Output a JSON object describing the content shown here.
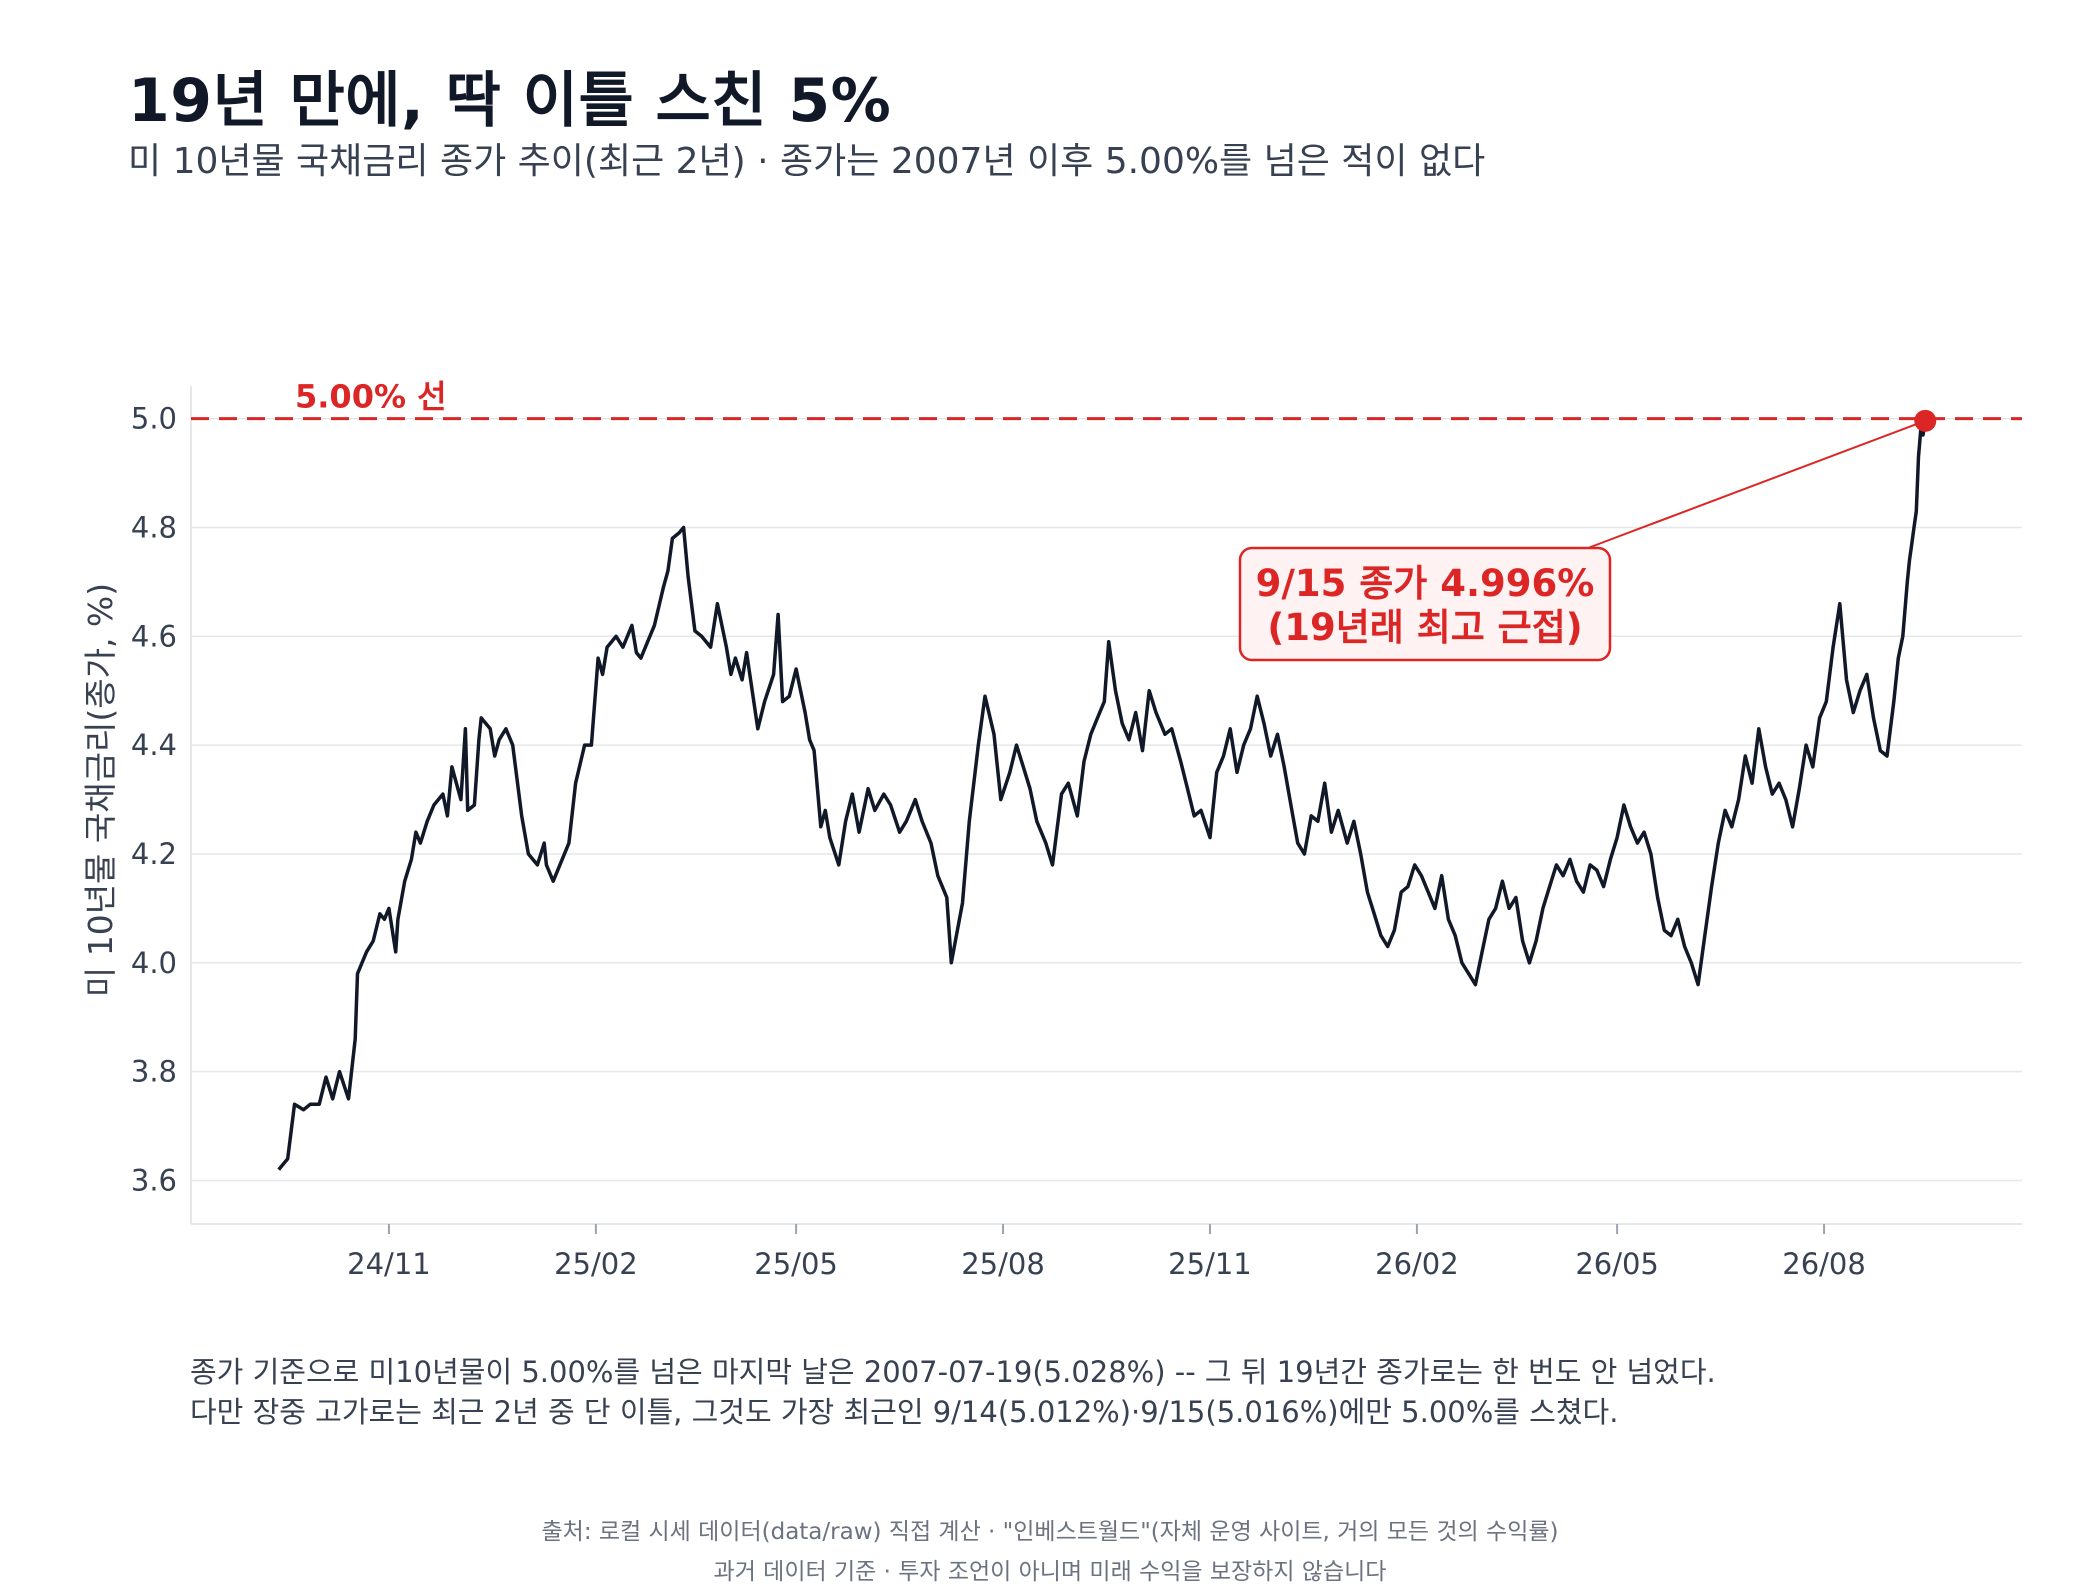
{
  "header": {
    "title": "19년 만에, 딱 이틀 스친 5%",
    "subtitle": "미 10년물 국채금리 종가 추이(최근 2년) · 종가는 2007년 이후 5.00%를 넘은 적이 없다"
  },
  "footnote": {
    "line1": "종가 기준으로 미10년물이 5.00%를 넘은 마지막 날은 2007-07-19(5.028%) -- 그 뒤 19년간 종가로는 한 번도 안 넘었다.",
    "line2": "다만 장중 고가로는 최근 2년 중 단 이틀, 그것도 가장 최근인 9/14(5.012%)·9/15(5.016%)에만 5.00%를 스쳤다."
  },
  "source": {
    "line1": "출처: 로컬 시세 데이터(data/raw) 직접 계산 · \"인베스트월드\"(자체 운영 사이트, 거의 모든 것의 수익률)",
    "line2": "과거 데이터 기준 · 투자 조언이 아니며 미래 수익을 보장하지 않습니다"
  },
  "colors": {
    "line": "#111827",
    "reference": "#dc2626",
    "grid": "#e5e7eb",
    "annotation_fill": "#fef2f2"
  },
  "chart_data": {
    "type": "line",
    "title": "",
    "xlabel": "",
    "ylabel": "미 10년물 국채금리(종가, %)",
    "ylim": [
      3.52,
      5.06
    ],
    "yticks": [
      3.6,
      3.8,
      4.0,
      4.2,
      4.4,
      4.6,
      4.8,
      5.0
    ],
    "ytick_labels": [
      "3.6",
      "3.8",
      "4.0",
      "4.2",
      "4.4",
      "4.6",
      "4.8",
      "5.0"
    ],
    "xlim": [
      "2024-08-05",
      "2026-10-28"
    ],
    "xticks": [
      "2024-11-01",
      "2025-02-01",
      "2025-05-01",
      "2025-08-01",
      "2025-11-01",
      "2026-02-01",
      "2026-05-01",
      "2026-08-01"
    ],
    "xtick_labels": [
      "24/11",
      "25/02",
      "25/05",
      "25/08",
      "25/11",
      "26/02",
      "26/05",
      "26/08"
    ],
    "grid": "horizontal",
    "reference_line": {
      "y": 5.0,
      "label": "5.00% 선"
    },
    "annotation": {
      "line1": "9/15 종가 4.996%",
      "line2": "(19년래 최고 근접)",
      "point": {
        "x": "2026-09-15",
        "y": 4.996
      }
    },
    "series": [
      {
        "values": [
          [
            "2024-09-13",
            3.62
          ],
          [
            "2024-09-17",
            3.64
          ],
          [
            "2024-09-20",
            3.74
          ],
          [
            "2024-09-24",
            3.73
          ],
          [
            "2024-09-27",
            3.74
          ],
          [
            "2024-10-01",
            3.74
          ],
          [
            "2024-10-04",
            3.79
          ],
          [
            "2024-10-07",
            3.75
          ],
          [
            "2024-10-10",
            3.8
          ],
          [
            "2024-10-14",
            3.75
          ],
          [
            "2024-10-17",
            3.86
          ],
          [
            "2024-10-18",
            3.98
          ],
          [
            "2024-10-22",
            4.02
          ],
          [
            "2024-10-25",
            4.04
          ],
          [
            "2024-10-28",
            4.09
          ],
          [
            "2024-10-30",
            4.08
          ],
          [
            "2024-11-01",
            4.1
          ],
          [
            "2024-11-04",
            4.02
          ],
          [
            "2024-11-05",
            4.08
          ],
          [
            "2024-11-08",
            4.15
          ],
          [
            "2024-11-11",
            4.19
          ],
          [
            "2024-11-13",
            4.24
          ],
          [
            "2024-11-15",
            4.22
          ],
          [
            "2024-11-18",
            4.26
          ],
          [
            "2024-11-21",
            4.29
          ],
          [
            "2024-11-25",
            4.31
          ],
          [
            "2024-11-27",
            4.27
          ],
          [
            "2024-11-29",
            4.36
          ],
          [
            "2024-12-03",
            4.3
          ],
          [
            "2024-12-05",
            4.43
          ],
          [
            "2024-12-06",
            4.28
          ],
          [
            "2024-12-09",
            4.29
          ],
          [
            "2024-12-11",
            4.41
          ],
          [
            "2024-12-12",
            4.45
          ],
          [
            "2024-12-16",
            4.43
          ],
          [
            "2024-12-18",
            4.38
          ],
          [
            "2024-12-20",
            4.41
          ],
          [
            "2024-12-23",
            4.43
          ],
          [
            "2024-12-26",
            4.4
          ],
          [
            "2024-12-30",
            4.27
          ],
          [
            "2025-01-02",
            4.2
          ],
          [
            "2025-01-06",
            4.18
          ],
          [
            "2025-01-09",
            4.22
          ],
          [
            "2025-01-10",
            4.18
          ],
          [
            "2025-01-13",
            4.15
          ],
          [
            "2025-01-16",
            4.18
          ],
          [
            "2025-01-20",
            4.22
          ],
          [
            "2025-01-23",
            4.33
          ],
          [
            "2025-01-27",
            4.4
          ],
          [
            "2025-01-30",
            4.4
          ],
          [
            "2025-02-02",
            4.56
          ],
          [
            "2025-02-04",
            4.53
          ],
          [
            "2025-02-06",
            4.58
          ],
          [
            "2025-02-10",
            4.6
          ],
          [
            "2025-02-13",
            4.58
          ],
          [
            "2025-02-17",
            4.62
          ],
          [
            "2025-02-19",
            4.57
          ],
          [
            "2025-02-21",
            4.56
          ],
          [
            "2025-02-24",
            4.59
          ],
          [
            "2025-02-27",
            4.62
          ],
          [
            "2025-03-03",
            4.69
          ],
          [
            "2025-03-05",
            4.72
          ],
          [
            "2025-03-07",
            4.78
          ],
          [
            "2025-03-10",
            4.79
          ],
          [
            "2025-03-12",
            4.8
          ],
          [
            "2025-03-14",
            4.71
          ],
          [
            "2025-03-17",
            4.61
          ],
          [
            "2025-03-20",
            4.6
          ],
          [
            "2025-03-24",
            4.58
          ],
          [
            "2025-03-27",
            4.66
          ],
          [
            "2025-03-31",
            4.58
          ],
          [
            "2025-04-02",
            4.53
          ],
          [
            "2025-04-04",
            4.56
          ],
          [
            "2025-04-07",
            4.52
          ],
          [
            "2025-04-09",
            4.57
          ],
          [
            "2025-04-14",
            4.43
          ],
          [
            "2025-04-17",
            4.48
          ],
          [
            "2025-04-21",
            4.53
          ],
          [
            "2025-04-23",
            4.64
          ],
          [
            "2025-04-25",
            4.48
          ],
          [
            "2025-04-28",
            4.49
          ],
          [
            "2025-05-01",
            4.54
          ],
          [
            "2025-05-05",
            4.46
          ],
          [
            "2025-05-07",
            4.41
          ],
          [
            "2025-05-09",
            4.39
          ],
          [
            "2025-05-12",
            4.25
          ],
          [
            "2025-05-14",
            4.28
          ],
          [
            "2025-05-16",
            4.23
          ],
          [
            "2025-05-20",
            4.18
          ],
          [
            "2025-05-23",
            4.26
          ],
          [
            "2025-05-26",
            4.31
          ],
          [
            "2025-05-29",
            4.24
          ],
          [
            "2025-06-02",
            4.32
          ],
          [
            "2025-06-05",
            4.28
          ],
          [
            "2025-06-09",
            4.31
          ],
          [
            "2025-06-12",
            4.29
          ],
          [
            "2025-06-16",
            4.24
          ],
          [
            "2025-06-19",
            4.26
          ],
          [
            "2025-06-23",
            4.3
          ],
          [
            "2025-06-26",
            4.26
          ],
          [
            "2025-06-30",
            4.22
          ],
          [
            "2025-07-03",
            4.16
          ],
          [
            "2025-07-07",
            4.12
          ],
          [
            "2025-07-09",
            4.0
          ],
          [
            "2025-07-14",
            4.11
          ],
          [
            "2025-07-17",
            4.26
          ],
          [
            "2025-07-21",
            4.4
          ],
          [
            "2025-07-24",
            4.49
          ],
          [
            "2025-07-28",
            4.42
          ],
          [
            "2025-07-31",
            4.3
          ],
          [
            "2025-08-04",
            4.35
          ],
          [
            "2025-08-07",
            4.4
          ],
          [
            "2025-08-10",
            4.36
          ],
          [
            "2025-08-13",
            4.32
          ],
          [
            "2025-08-16",
            4.26
          ],
          [
            "2025-08-20",
            4.22
          ],
          [
            "2025-08-23",
            4.18
          ],
          [
            "2025-08-27",
            4.31
          ],
          [
            "2025-08-30",
            4.33
          ],
          [
            "2025-09-03",
            4.27
          ],
          [
            "2025-09-06",
            4.37
          ],
          [
            "2025-09-09",
            4.42
          ],
          [
            "2025-09-12",
            4.45
          ],
          [
            "2025-09-15",
            4.48
          ],
          [
            "2025-09-17",
            4.59
          ],
          [
            "2025-09-20",
            4.5
          ],
          [
            "2025-09-23",
            4.44
          ],
          [
            "2025-09-26",
            4.41
          ],
          [
            "2025-09-29",
            4.46
          ],
          [
            "2025-10-02",
            4.39
          ],
          [
            "2025-10-05",
            4.5
          ],
          [
            "2025-10-08",
            4.46
          ],
          [
            "2025-10-12",
            4.42
          ],
          [
            "2025-10-15",
            4.43
          ],
          [
            "2025-10-19",
            4.37
          ],
          [
            "2025-10-22",
            4.32
          ],
          [
            "2025-10-25",
            4.27
          ],
          [
            "2025-10-28",
            4.28
          ],
          [
            "2025-11-01",
            4.23
          ],
          [
            "2025-11-04",
            4.35
          ],
          [
            "2025-11-07",
            4.38
          ],
          [
            "2025-11-10",
            4.43
          ],
          [
            "2025-11-13",
            4.35
          ],
          [
            "2025-11-16",
            4.4
          ],
          [
            "2025-11-19",
            4.43
          ],
          [
            "2025-11-22",
            4.49
          ],
          [
            "2025-11-25",
            4.44
          ],
          [
            "2025-11-28",
            4.38
          ],
          [
            "2025-12-01",
            4.42
          ],
          [
            "2025-12-04",
            4.36
          ],
          [
            "2025-12-07",
            4.29
          ],
          [
            "2025-12-10",
            4.22
          ],
          [
            "2025-12-13",
            4.2
          ],
          [
            "2025-12-16",
            4.27
          ],
          [
            "2025-12-19",
            4.26
          ],
          [
            "2025-12-22",
            4.33
          ],
          [
            "2025-12-25",
            4.24
          ],
          [
            "2025-12-28",
            4.28
          ],
          [
            "2026-01-01",
            4.22
          ],
          [
            "2026-01-04",
            4.26
          ],
          [
            "2026-01-07",
            4.2
          ],
          [
            "2026-01-10",
            4.13
          ],
          [
            "2026-01-13",
            4.09
          ],
          [
            "2026-01-16",
            4.05
          ],
          [
            "2026-01-19",
            4.03
          ],
          [
            "2026-01-22",
            4.06
          ],
          [
            "2026-01-25",
            4.13
          ],
          [
            "2026-01-28",
            4.14
          ],
          [
            "2026-01-31",
            4.18
          ],
          [
            "2026-02-03",
            4.16
          ],
          [
            "2026-02-06",
            4.13
          ],
          [
            "2026-02-09",
            4.1
          ],
          [
            "2026-02-12",
            4.16
          ],
          [
            "2026-02-15",
            4.08
          ],
          [
            "2026-02-18",
            4.05
          ],
          [
            "2026-02-21",
            4.0
          ],
          [
            "2026-02-24",
            3.98
          ],
          [
            "2026-02-27",
            3.96
          ],
          [
            "2026-03-02",
            4.02
          ],
          [
            "2026-03-05",
            4.08
          ],
          [
            "2026-03-08",
            4.1
          ],
          [
            "2026-03-11",
            4.15
          ],
          [
            "2026-03-14",
            4.1
          ],
          [
            "2026-03-17",
            4.12
          ],
          [
            "2026-03-20",
            4.04
          ],
          [
            "2026-03-23",
            4.0
          ],
          [
            "2026-03-26",
            4.04
          ],
          [
            "2026-03-29",
            4.1
          ],
          [
            "2026-04-01",
            4.14
          ],
          [
            "2026-04-04",
            4.18
          ],
          [
            "2026-04-07",
            4.16
          ],
          [
            "2026-04-10",
            4.19
          ],
          [
            "2026-04-13",
            4.15
          ],
          [
            "2026-04-16",
            4.13
          ],
          [
            "2026-04-19",
            4.18
          ],
          [
            "2026-04-22",
            4.17
          ],
          [
            "2026-04-25",
            4.14
          ],
          [
            "2026-04-28",
            4.19
          ],
          [
            "2026-05-01",
            4.23
          ],
          [
            "2026-05-04",
            4.29
          ],
          [
            "2026-05-07",
            4.25
          ],
          [
            "2026-05-10",
            4.22
          ],
          [
            "2026-05-13",
            4.24
          ],
          [
            "2026-05-16",
            4.2
          ],
          [
            "2026-05-19",
            4.12
          ],
          [
            "2026-05-22",
            4.06
          ],
          [
            "2026-05-25",
            4.05
          ],
          [
            "2026-05-28",
            4.08
          ],
          [
            "2026-05-31",
            4.03
          ],
          [
            "2026-06-03",
            4.0
          ],
          [
            "2026-06-06",
            3.96
          ],
          [
            "2026-06-09",
            4.05
          ],
          [
            "2026-06-12",
            4.14
          ],
          [
            "2026-06-15",
            4.22
          ],
          [
            "2026-06-18",
            4.28
          ],
          [
            "2026-06-21",
            4.25
          ],
          [
            "2026-06-24",
            4.3
          ],
          [
            "2026-06-27",
            4.38
          ],
          [
            "2026-06-30",
            4.33
          ],
          [
            "2026-07-03",
            4.43
          ],
          [
            "2026-07-06",
            4.36
          ],
          [
            "2026-07-09",
            4.31
          ],
          [
            "2026-07-12",
            4.33
          ],
          [
            "2026-07-15",
            4.3
          ],
          [
            "2026-07-18",
            4.25
          ],
          [
            "2026-07-21",
            4.32
          ],
          [
            "2026-07-24",
            4.4
          ],
          [
            "2026-07-27",
            4.36
          ],
          [
            "2026-07-30",
            4.45
          ],
          [
            "2026-08-02",
            4.48
          ],
          [
            "2026-08-05",
            4.58
          ],
          [
            "2026-08-08",
            4.66
          ],
          [
            "2026-08-11",
            4.52
          ],
          [
            "2026-08-14",
            4.46
          ],
          [
            "2026-08-17",
            4.5
          ],
          [
            "2026-08-20",
            4.53
          ],
          [
            "2026-08-23",
            4.45
          ],
          [
            "2026-08-26",
            4.39
          ],
          [
            "2026-08-29",
            4.38
          ],
          [
            "2026-09-01",
            4.48
          ],
          [
            "2026-09-03",
            4.56
          ],
          [
            "2026-09-05",
            4.6
          ],
          [
            "2026-09-07",
            4.7
          ],
          [
            "2026-09-08",
            4.74
          ],
          [
            "2026-09-09",
            4.77
          ],
          [
            "2026-09-10",
            4.8
          ],
          [
            "2026-09-11",
            4.83
          ],
          [
            "2026-09-12",
            4.93
          ],
          [
            "2026-09-13",
            4.98
          ],
          [
            "2026-09-14",
            4.97
          ],
          [
            "2026-09-15",
            4.996
          ]
        ]
      }
    ]
  }
}
